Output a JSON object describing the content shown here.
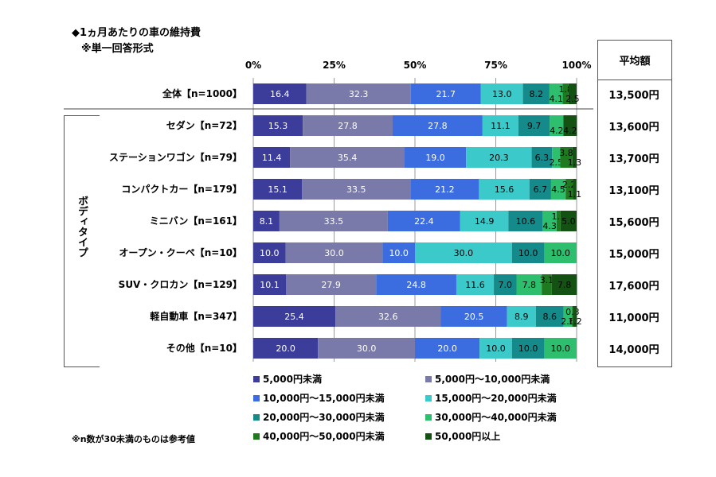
{
  "header": {
    "title": "◆1ヵ月あたりの車の維持費",
    "subtitle": "※単一回答形式",
    "footnote": "※n数が30未満のものは参考値",
    "avg_header": "平均額",
    "group_label": "ボディタイプ"
  },
  "colors": [
    "#3c3c9a",
    "#7a7aaa",
    "#3b6de0",
    "#3cc9c9",
    "#148a8a",
    "#2dbf6e",
    "#1f7a1f",
    "#145214"
  ],
  "chart_data": {
    "type": "bar",
    "orientation": "horizontal-stacked-100",
    "xlim": [
      0,
      100
    ],
    "ticks": [
      "0%",
      "25%",
      "50%",
      "75%",
      "100%"
    ],
    "legend": [
      "5,000円未満",
      "5,000円～10,000円未満",
      "10,000円～15,000円未満",
      "15,000円～20,000円未満",
      "20,000円～30,000円未満",
      "30,000円～40,000円未満",
      "40,000円～50,000円未満",
      "50,000円以上"
    ],
    "rows": [
      {
        "label": "全体【n=1000】",
        "values": [
          16.4,
          32.3,
          21.7,
          13.0,
          8.2,
          4.1,
          1.8,
          2.5
        ],
        "avg": "13,500円"
      },
      {
        "label": "セダン【n=72】",
        "values": [
          15.3,
          27.8,
          27.8,
          11.1,
          9.7,
          4.2,
          0,
          4.2
        ],
        "avg": "13,600円"
      },
      {
        "label": "ステーションワゴン【n=79】",
        "values": [
          11.4,
          35.4,
          19.0,
          20.3,
          6.3,
          2.5,
          3.8,
          1.3
        ],
        "avg": "13,700円"
      },
      {
        "label": "コンパクトカー【n=179】",
        "values": [
          15.1,
          33.5,
          21.2,
          15.6,
          6.7,
          4.5,
          2.2,
          1.1
        ],
        "avg": "13,100円"
      },
      {
        "label": "ミニバン【n=161】",
        "values": [
          8.1,
          33.5,
          22.4,
          14.9,
          10.6,
          4.3,
          1.2,
          5.0
        ],
        "avg": "15,600円"
      },
      {
        "label": "オープン・クーペ【n=10】",
        "values": [
          10.0,
          30.0,
          10.0,
          30.0,
          10.0,
          10.0,
          0,
          0
        ],
        "avg": "15,000円"
      },
      {
        "label": "SUV・クロカン【n=129】",
        "values": [
          10.1,
          27.9,
          24.8,
          11.6,
          7.0,
          7.8,
          3.1,
          7.8
        ],
        "avg": "17,600円"
      },
      {
        "label": "軽自動車【n=347】",
        "values": [
          25.4,
          32.6,
          20.5,
          8.9,
          8.6,
          2.6,
          0.3,
          1.2
        ],
        "avg": "11,000円"
      },
      {
        "label": "その他【n=10】",
        "values": [
          20.0,
          30.0,
          20.0,
          10.0,
          10.0,
          10.0,
          0,
          0
        ],
        "avg": "14,000円"
      }
    ]
  }
}
